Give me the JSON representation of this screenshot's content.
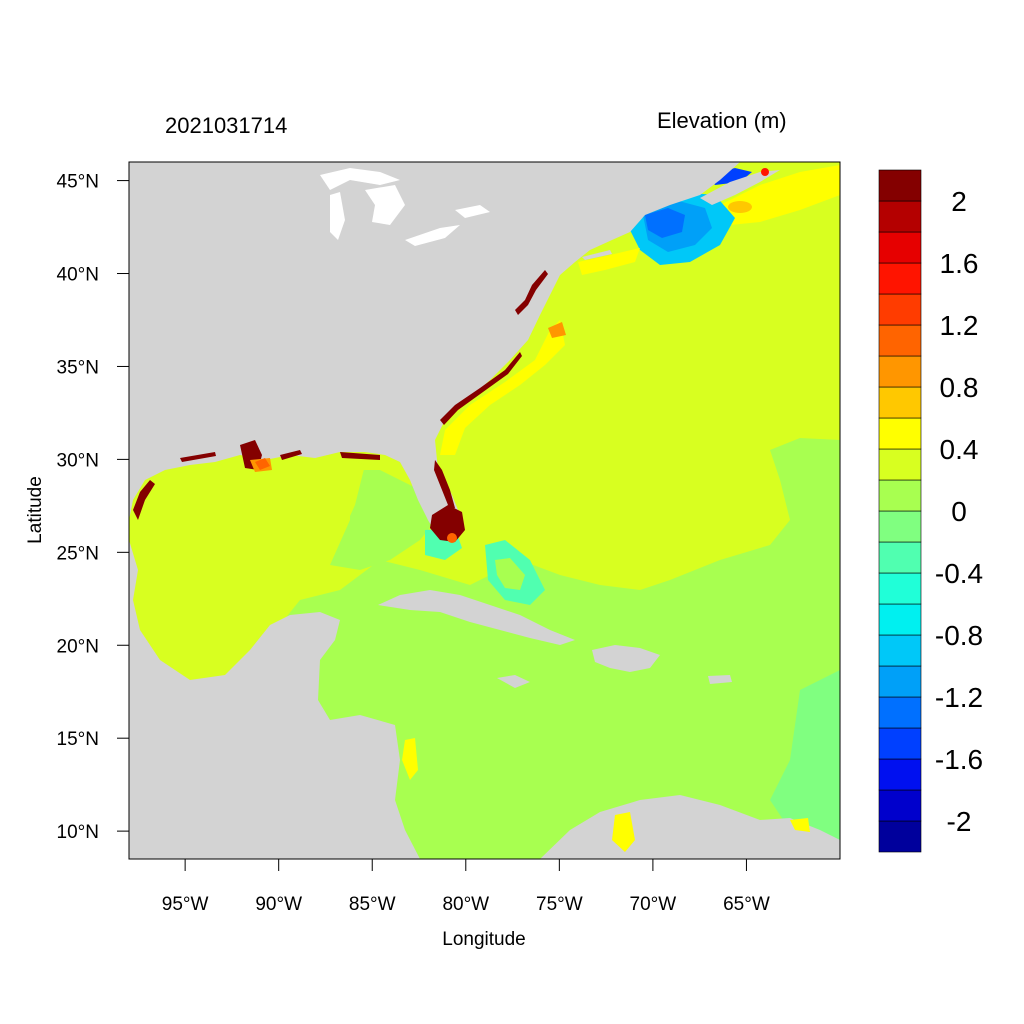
{
  "header": {
    "timestamp": "2021031714",
    "colorbar_title": "Elevation (m)"
  },
  "axes": {
    "xlabel": "Longitude",
    "ylabel": "Latitude",
    "x_range": [
      -98,
      -60
    ],
    "y_range": [
      8.5,
      46.0
    ],
    "x_ticks": [
      {
        "value": -95,
        "label": "95°W"
      },
      {
        "value": -90,
        "label": "90°W"
      },
      {
        "value": -85,
        "label": "85°W"
      },
      {
        "value": -80,
        "label": "80°W"
      },
      {
        "value": -75,
        "label": "75°W"
      },
      {
        "value": -70,
        "label": "70°W"
      },
      {
        "value": -65,
        "label": "65°W"
      }
    ],
    "y_ticks": [
      {
        "value": 45,
        "label": "45°N"
      },
      {
        "value": 40,
        "label": "40°N"
      },
      {
        "value": 35,
        "label": "35°N"
      },
      {
        "value": 30,
        "label": "30°N"
      },
      {
        "value": 25,
        "label": "25°N"
      },
      {
        "value": 20,
        "label": "20°N"
      },
      {
        "value": 15,
        "label": "15°N"
      },
      {
        "value": 10,
        "label": "10°N"
      }
    ]
  },
  "colorbar": {
    "levels": [
      "#00009c",
      "#0000cc",
      "#0010f0",
      "#0040ff",
      "#0070ff",
      "#00a0f8",
      "#00c8f8",
      "#00f0f0",
      "#20ffd8",
      "#50ffb0",
      "#80ff80",
      "#a8ff50",
      "#d8ff20",
      "#ffff00",
      "#ffc800",
      "#ff9600",
      "#ff6400",
      "#ff3c00",
      "#ff1400",
      "#e60000",
      "#b40000",
      "#840000"
    ],
    "ticks": [
      "2",
      "1.6",
      "1.2",
      "0.8",
      "0.4",
      "0",
      "-0.4",
      "-0.8",
      "-1.2",
      "-1.6",
      "-2"
    ]
  },
  "colors": {
    "land": "#d3d3d3",
    "ocean_near_zero": "#a8ff50",
    "ocean_slightly_positive": "#d8ff20",
    "ocean_positive": "#ffff00",
    "surge_high": "#840000",
    "surge_negative": "#0070ff"
  }
}
